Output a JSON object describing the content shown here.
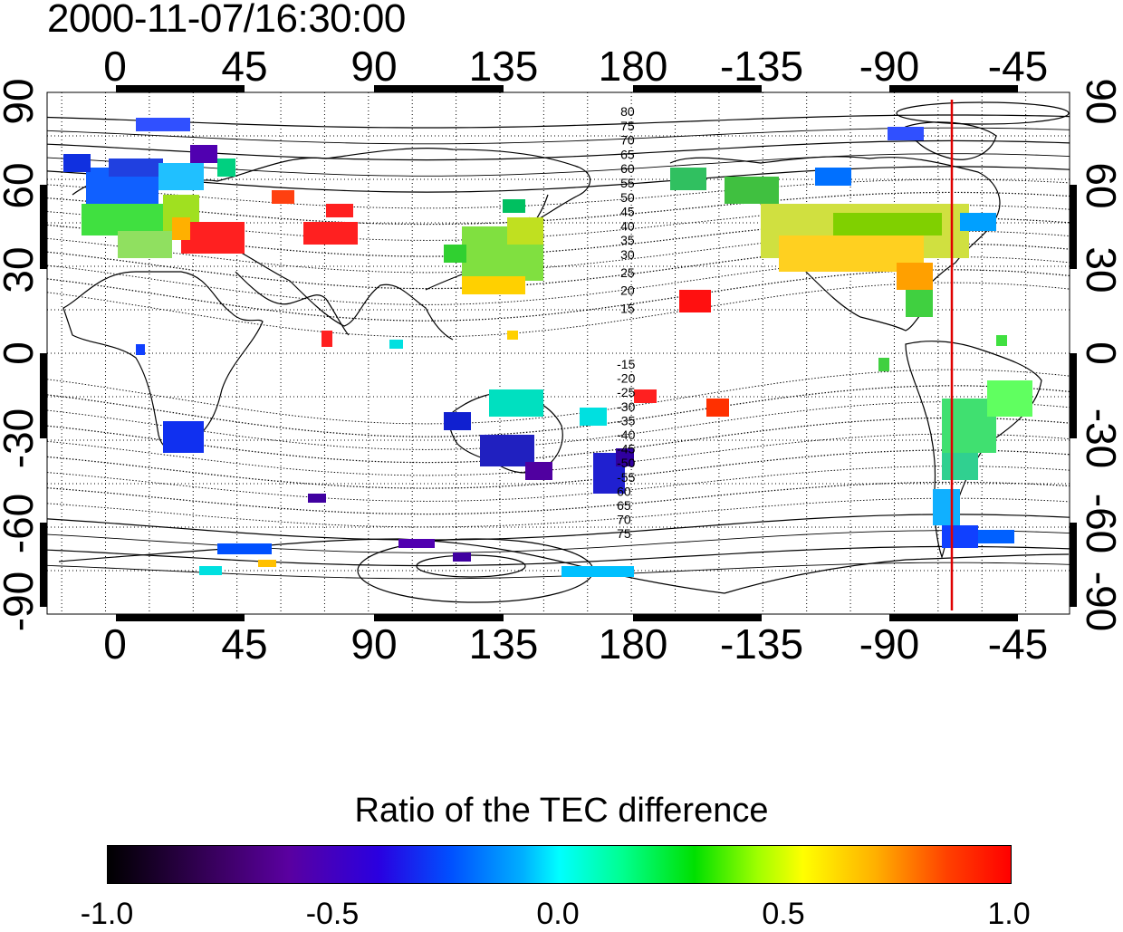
{
  "timestamp": "2000-11-07/16:30:00",
  "map": {
    "lon_labels": [
      "0",
      "45",
      "90",
      "135",
      "180",
      "-135",
      "-90",
      "-45"
    ],
    "lat_labels_left": [
      "90",
      "60",
      "30",
      "0",
      "-30",
      "-60",
      "-90"
    ],
    "lat_labels_right": [
      "90",
      "60",
      "30",
      "0",
      "-30",
      "-60",
      "-90"
    ],
    "lon_range": [
      -20,
      330
    ],
    "lat_range": [
      -90,
      90
    ],
    "grid_spacing_deg": 15,
    "sun_longitude_label": "-70",
    "contour_labels_north": [
      "80",
      "75",
      "70",
      "65",
      "60",
      "55",
      "50",
      "45",
      "40",
      "35",
      "30",
      "25",
      "20",
      "15"
    ],
    "contour_labels_south": [
      "-15",
      "-20",
      "-25",
      "-30",
      "-35",
      "-40",
      "-45",
      "-50",
      "-55",
      "60",
      "65",
      "70",
      "75"
    ],
    "marker_color": "#e00000"
  },
  "colorbar": {
    "title": "Ratio of the TEC difference",
    "ticks": [
      "-1.0",
      "-0.5",
      "0.0",
      "0.5",
      "1.0"
    ],
    "range": [
      -1.0,
      1.0
    ],
    "colormap": "black-purple-blue-cyan-green-yellow-red"
  }
}
